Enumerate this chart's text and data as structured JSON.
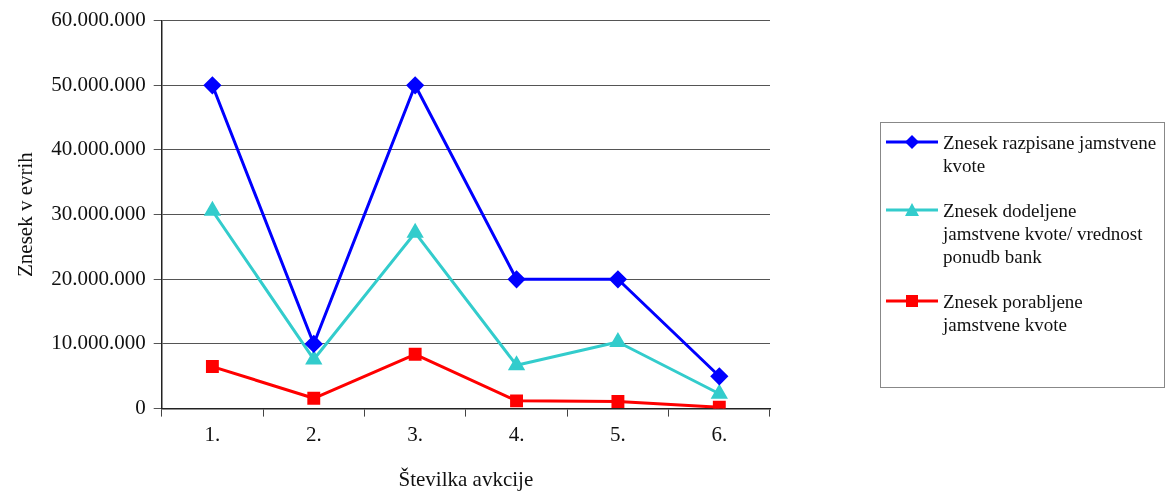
{
  "chart_data": {
    "type": "line",
    "xlabel": "Številka avkcije",
    "ylabel": "Znesek v evrih",
    "categories": [
      "1.",
      "2.",
      "3.",
      "4.",
      "5.",
      "6."
    ],
    "series": [
      {
        "name": "Znesek razpisane jamstvene kvote",
        "color": "#0000ff",
        "marker": "diamond",
        "values": [
          50000000,
          10000000,
          50000000,
          20000000,
          20000000,
          5000000
        ]
      },
      {
        "name": "Znesek dodeljene jamstvene kvote/ vrednost ponudb bank",
        "color": "#33cccc",
        "marker": "triangle",
        "values": [
          30600000,
          7600000,
          27200000,
          6700000,
          10300000,
          2300000
        ]
      },
      {
        "name": "Znesek porabljene jamstvene kvote",
        "color": "#ff0000",
        "marker": "square",
        "values": [
          6500000,
          1600000,
          8400000,
          1200000,
          1100000,
          200000
        ]
      }
    ],
    "ylim": [
      0,
      60000000
    ],
    "yticks": [
      0,
      {
        "value": 10000000,
        "label": "10.000.000"
      },
      {
        "value": 20000000,
        "label": "20.000.000"
      },
      {
        "value": 30000000,
        "label": "30.000.000"
      },
      {
        "value": 40000000,
        "label": "40.000.000"
      },
      {
        "value": 50000000,
        "label": "50.000.000"
      },
      {
        "value": 60000000,
        "label": "60.000.000"
      }
    ],
    "grid": "y",
    "legend": "right",
    "line_style": "solid"
  }
}
